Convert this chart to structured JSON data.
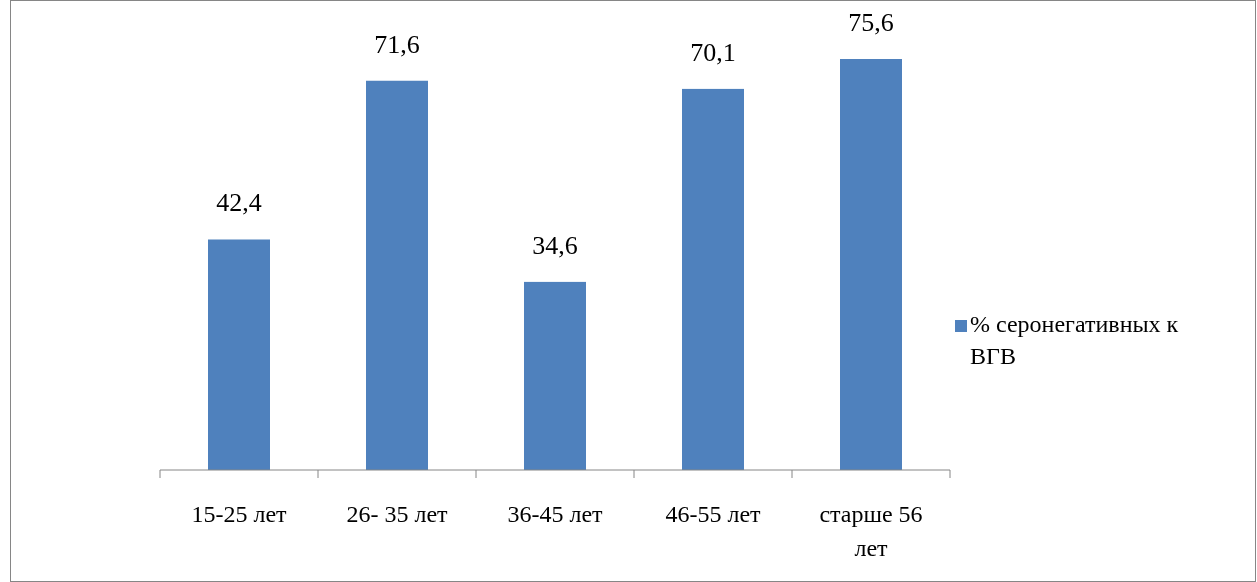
{
  "chart_data": {
    "type": "bar",
    "categories": [
      "15-25 лет",
      "26- 35 лет",
      "36-45 лет",
      "46-55 лет",
      "старше 56 лет"
    ],
    "series": [
      {
        "name": "% серонегативных к ВГВ",
        "color": "#4f81bd",
        "values": [
          42.4,
          71.6,
          34.6,
          70.1,
          75.6
        ],
        "value_labels": [
          "42,4",
          "71,6",
          "34,6",
          "70,1",
          "75,6"
        ]
      }
    ],
    "data_labels": true,
    "legend": "right"
  }
}
